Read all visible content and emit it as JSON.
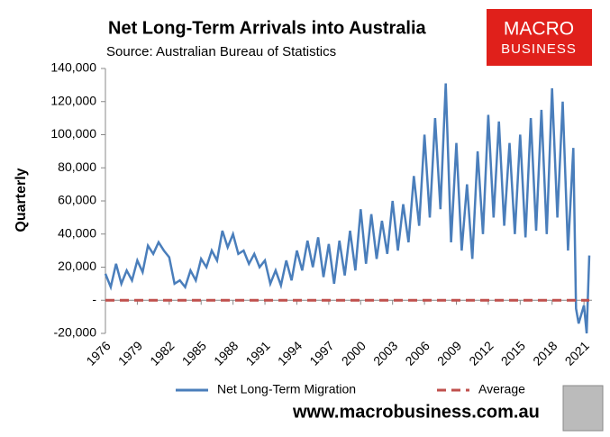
{
  "chart_data": {
    "type": "line",
    "title": "Net Long-Term Arrivals into Australia",
    "subtitle": "Source: Australian Bureau of Statistics",
    "logo": [
      "MACRO",
      "BUSINESS"
    ],
    "footer": "www.macrobusiness.com.au",
    "ylabel": "Quarterly",
    "x": [
      1976,
      1976.5,
      1977,
      1977.5,
      1978,
      1978.5,
      1979,
      1979.5,
      1980,
      1980.5,
      1981,
      1981.5,
      1982,
      1982.5,
      1983,
      1983.5,
      1984,
      1984.5,
      1985,
      1985.5,
      1986,
      1986.5,
      1987,
      1987.5,
      1988,
      1988.5,
      1989,
      1989.5,
      1990,
      1990.5,
      1991,
      1991.5,
      1992,
      1992.5,
      1993,
      1993.5,
      1994,
      1994.5,
      1995,
      1995.5,
      1996,
      1996.5,
      1997,
      1997.5,
      1998,
      1998.5,
      1999,
      1999.5,
      2000,
      2000.5,
      2001,
      2001.5,
      2002,
      2002.5,
      2003,
      2003.5,
      2004,
      2004.5,
      2005,
      2005.5,
      2006,
      2006.5,
      2007,
      2007.5,
      2008,
      2008.5,
      2009,
      2009.5,
      2010,
      2010.5,
      2011,
      2011.5,
      2012,
      2012.5,
      2013,
      2013.5,
      2014,
      2014.5,
      2015,
      2015.5,
      2016,
      2016.5,
      2017,
      2017.5,
      2018,
      2018.5,
      2019,
      2019.5,
      2020,
      2020.25,
      2020.5,
      2021,
      2021.25,
      2021.5
    ],
    "series": [
      {
        "name": "Net Long-Term Migration",
        "color": "#4a7ebb",
        "dash": false,
        "values": [
          16000,
          8000,
          22000,
          10000,
          18000,
          12000,
          24000,
          17000,
          33000,
          28000,
          35000,
          30000,
          26000,
          10000,
          12000,
          8000,
          18000,
          12000,
          25000,
          20000,
          30000,
          24000,
          42000,
          32000,
          40000,
          28000,
          30000,
          22000,
          28000,
          20000,
          24000,
          10000,
          18000,
          9000,
          24000,
          12000,
          30000,
          18000,
          36000,
          20000,
          38000,
          14000,
          34000,
          10000,
          36000,
          15000,
          42000,
          18000,
          55000,
          22000,
          52000,
          25000,
          48000,
          28000,
          60000,
          30000,
          58000,
          35000,
          75000,
          45000,
          100000,
          50000,
          110000,
          55000,
          131000,
          35000,
          95000,
          30000,
          70000,
          25000,
          90000,
          40000,
          112000,
          50000,
          108000,
          45000,
          95000,
          40000,
          100000,
          38000,
          110000,
          42000,
          115000,
          40000,
          128000,
          50000,
          120000,
          30000,
          92000,
          -5000,
          -14000,
          -3000,
          -20000,
          27000
        ]
      },
      {
        "name": "Average",
        "color": "#c0504d",
        "dash": true,
        "x": [
          1976,
          2021.5
        ],
        "values": [
          0,
          0
        ]
      }
    ],
    "xlim": [
      1976,
      2021.75
    ],
    "xticks": [
      1976,
      1979,
      1982,
      1985,
      1988,
      1991,
      1994,
      1997,
      2000,
      2003,
      2006,
      2009,
      2012,
      2015,
      2018,
      2021
    ],
    "ylim": [
      -20000,
      140000
    ],
    "yticks": [
      {
        "value": -20000,
        "label": "-20,000"
      },
      {
        "value": 0,
        "label": "-"
      },
      {
        "value": 20000,
        "label": "20,000"
      },
      {
        "value": 40000,
        "label": "40,000"
      },
      {
        "value": 60000,
        "label": "60,000"
      },
      {
        "value": 80000,
        "label": "80,000"
      },
      {
        "value": 100000,
        "label": "100,000"
      },
      {
        "value": 120000,
        "label": "120,000"
      },
      {
        "value": 140000,
        "label": "140,000"
      }
    ],
    "grid": false,
    "legend": "bottom"
  }
}
